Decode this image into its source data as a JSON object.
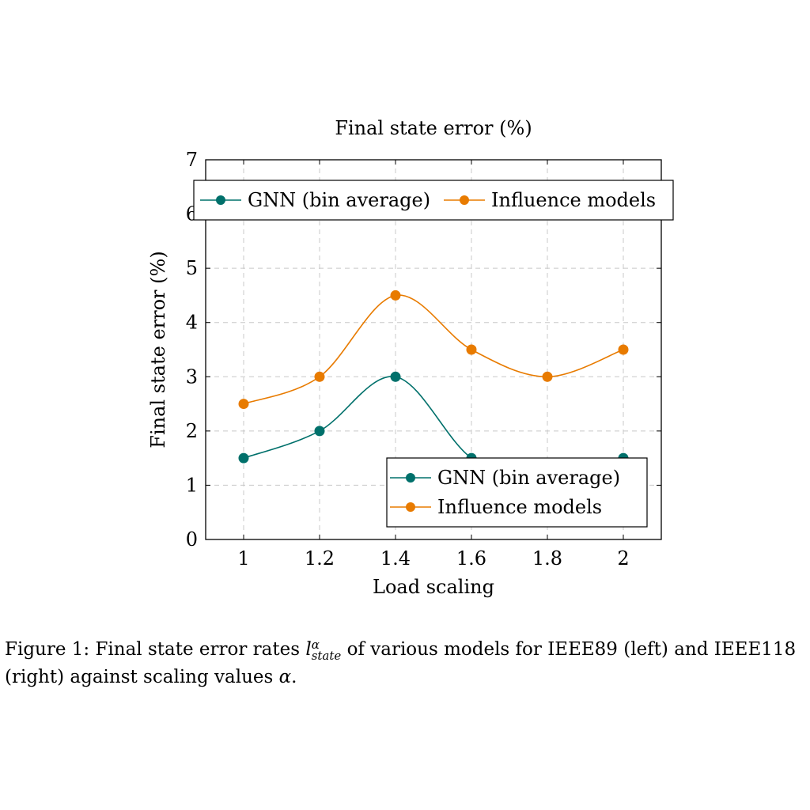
{
  "chart_data": {
    "type": "line",
    "title": "Final state error (%)",
    "xlabel": "Load scaling",
    "ylabel": "Final state error (%)",
    "x": [
      1,
      1.2,
      1.4,
      1.6,
      1.8,
      2
    ],
    "x_tick_labels": [
      "1",
      "1.2",
      "1.4",
      "1.6",
      "1.8",
      "2"
    ],
    "y_tick_labels": [
      "0",
      "1",
      "2",
      "3",
      "4",
      "5",
      "6",
      "7"
    ],
    "xlim": [
      0.9,
      2.1
    ],
    "ylim": [
      0,
      7
    ],
    "grid": true,
    "smooth": true,
    "legend_top": "top, horizontal",
    "legend_bottom": "bottom-right",
    "series": [
      {
        "name": "GNN (bin average)",
        "color": "#00706b",
        "values": [
          1.5,
          2.0,
          3.0,
          1.5,
          1.0,
          1.5
        ]
      },
      {
        "name": "Influence models",
        "color": "#e87b00",
        "values": [
          2.5,
          3.0,
          4.5,
          3.5,
          3.0,
          3.5
        ]
      }
    ]
  },
  "caption": {
    "prefix": "Figure 1: Final state error rates ",
    "symbol": "l",
    "subscript": "state",
    "superscript": "α",
    "middle": " of various models for IEEE89 (left) and IEEE118 (right) against scaling values ",
    "alpha": "α",
    "suffix": "."
  }
}
